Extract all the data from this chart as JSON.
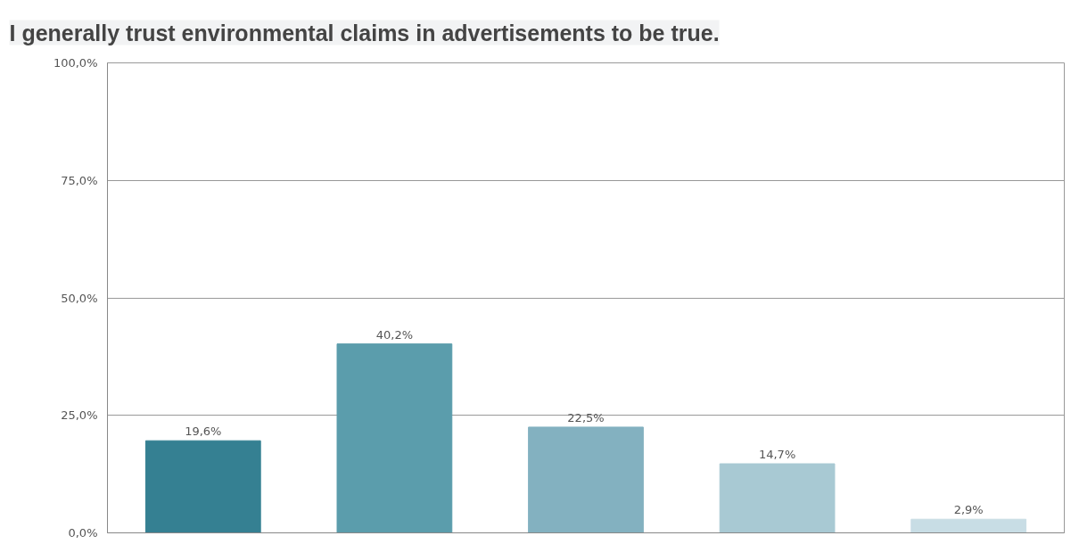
{
  "chart_data": {
    "type": "bar",
    "title": "I generally trust environmental claims in advertisements to be true.",
    "categories": [
      null,
      null,
      null,
      null,
      null
    ],
    "values": [
      19.6,
      40.2,
      22.5,
      14.7,
      2.9
    ],
    "colors": [
      "#358092",
      "#5b9dac",
      "#83b1c0",
      "#a8c9d3",
      "#c8dde5"
    ],
    "value_labels": [
      "19,6%",
      "40,2%",
      "22,5%",
      "14,7%",
      "2,9%"
    ],
    "ylim": [
      0,
      100
    ],
    "yticks": [
      {
        "value": 0,
        "label": "0,0%"
      },
      {
        "value": 25,
        "label": "25,0%"
      },
      {
        "value": 50,
        "label": "50,0%"
      },
      {
        "value": 75,
        "label": "75,0%"
      },
      {
        "value": 100,
        "label": "100,0%"
      }
    ],
    "grid": "y"
  }
}
